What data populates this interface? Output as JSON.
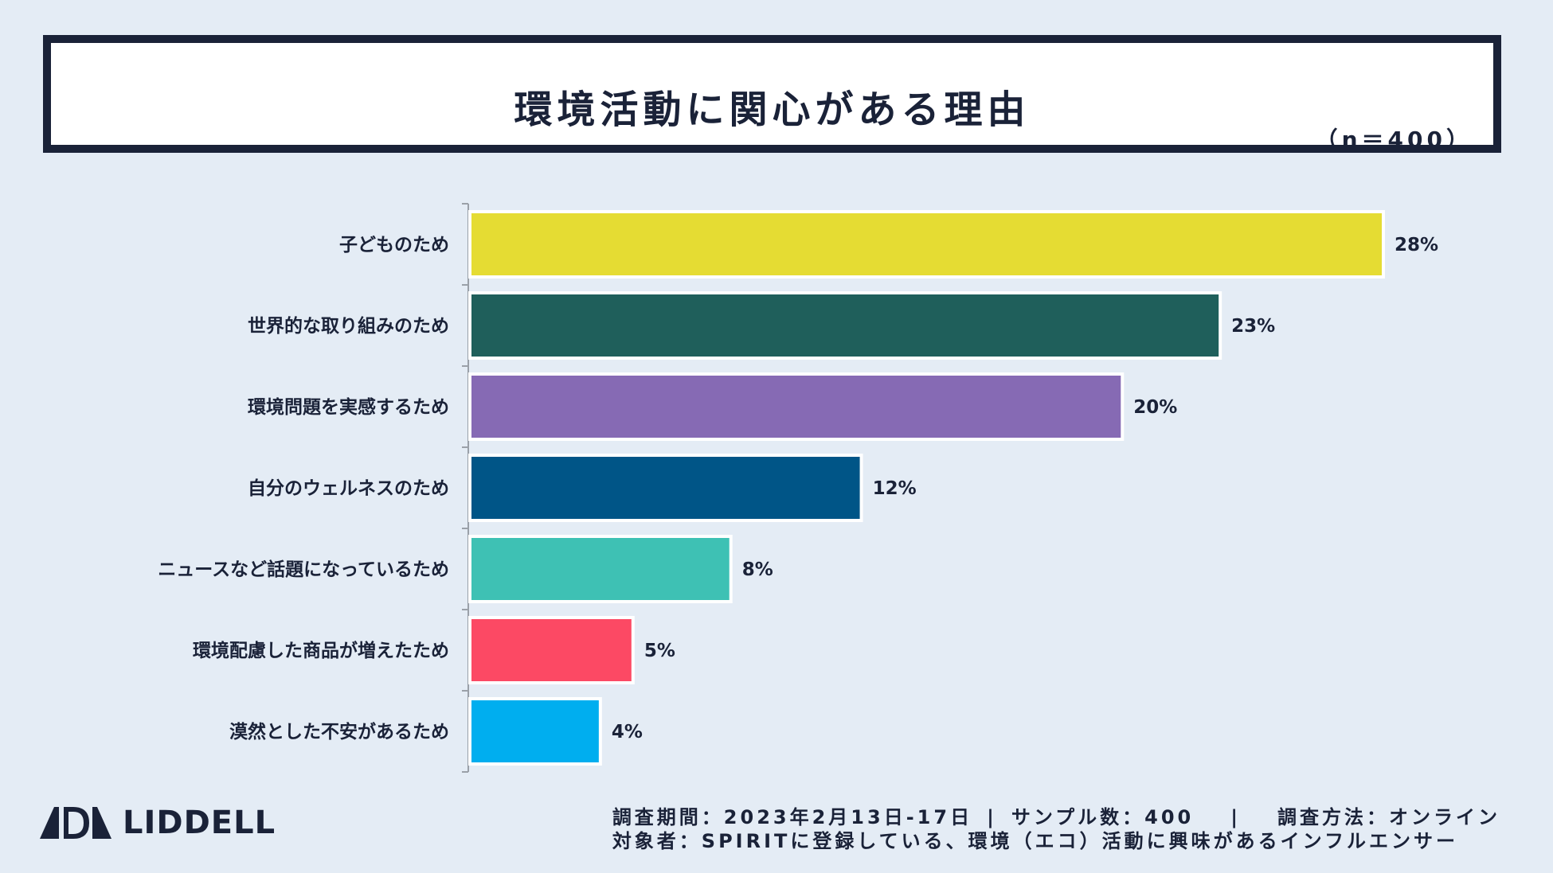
{
  "header": {
    "title": "環境活動に関心がある理由",
    "sample_size": "（n＝400）"
  },
  "chart_data": {
    "type": "bar",
    "orientation": "horizontal",
    "title": "環境活動に関心がある理由",
    "categories": [
      "子どものため",
      "世界的な取り組みのため",
      "環境問題を実感するため",
      "自分のウェルネスのため",
      "ニュースなど話題になっているため",
      "環境配慮した商品が増えたため",
      "漠然とした不安があるため"
    ],
    "values": [
      28,
      23,
      20,
      12,
      8,
      5,
      4
    ],
    "value_labels": [
      "28%",
      "23%",
      "20%",
      "12%",
      "8%",
      "5%",
      "4%"
    ],
    "unit": "%",
    "colors": [
      "#e5dc33",
      "#1f5f5b",
      "#866ab4",
      "#005587",
      "#3ec1b4",
      "#fc4964",
      "#00aeef"
    ],
    "xlim": [
      0,
      28
    ],
    "grid": false,
    "legend": "none"
  },
  "footer": {
    "logo_text": "LIDDELL",
    "period": "調査期間：2023年2月13日-17日",
    "sample": "サンプル数：400",
    "method": "調査方法：オンライン",
    "target": "対象者：SPIRITに登録している、環境（エコ）活動に興味があるインフルエンサー"
  },
  "icons": {
    "logo": "liddell-logo-icon"
  }
}
